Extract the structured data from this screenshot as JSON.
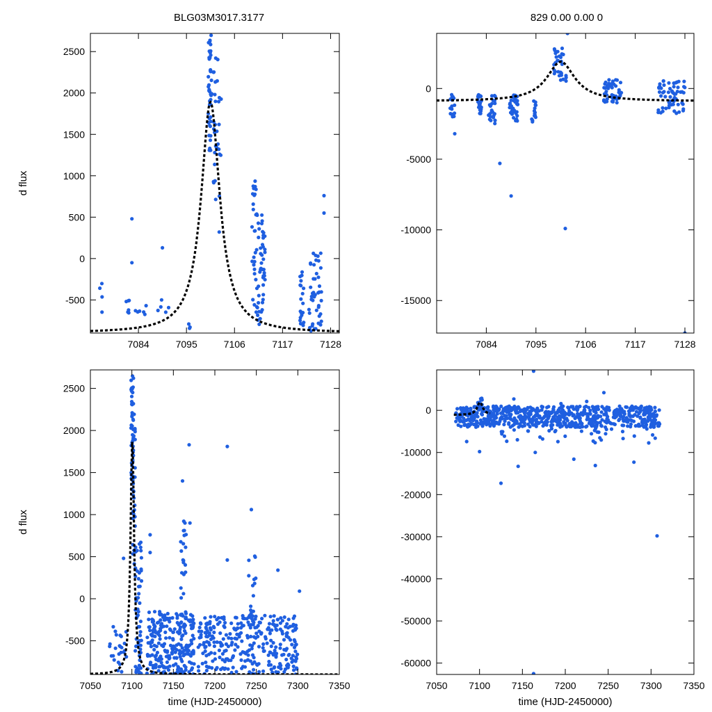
{
  "titles": {
    "left": "BLG03M3017.3177",
    "right": "829  0.00  0.00  0"
  },
  "colors": {
    "points": "#1f5fe0",
    "model": "#000000",
    "frame": "#000000"
  },
  "chart_data": [
    {
      "id": "top-left",
      "type": "scatter",
      "title": "BLG03M3017.3177",
      "xlabel": "",
      "ylabel": "d flux",
      "xlim": [
        7073,
        7130
      ],
      "ylim": [
        -900,
        2720
      ],
      "xticks": [
        7084,
        7095,
        7106,
        7117,
        7128
      ],
      "yticks": [
        -500,
        0,
        500,
        1000,
        1500,
        2000,
        2500
      ],
      "model": {
        "type": "peak",
        "base": -900,
        "amp": 2790,
        "t0": 7100.5,
        "tau": 2.6
      },
      "clusters": [
        {
          "x": [
            7075,
            7076
          ],
          "y": [
            -800,
            -300
          ],
          "n": 4
        },
        {
          "x": [
            7081,
            7082
          ],
          "y": [
            -700,
            -470
          ],
          "n": 6
        },
        {
          "x": [
            7083,
            7086
          ],
          "y": [
            -700,
            -550
          ],
          "n": 6
        },
        {
          "x": [
            7088,
            7091
          ],
          "y": [
            -700,
            -470
          ],
          "n": 5
        },
        {
          "x": [
            7095,
            7096
          ],
          "y": [
            -850,
            -780
          ],
          "n": 3
        },
        {
          "x": [
            7100,
            7100.8
          ],
          "y": [
            1300,
            2700
          ],
          "n": 45
        },
        {
          "x": [
            7101,
            7103
          ],
          "y": [
            700,
            2450
          ],
          "n": 30
        },
        {
          "x": [
            7110,
            7111
          ],
          "y": [
            -700,
            950
          ],
          "n": 25
        },
        {
          "x": [
            7111,
            7113
          ],
          "y": [
            -800,
            550
          ],
          "n": 50
        },
        {
          "x": [
            7121,
            7122
          ],
          "y": [
            -850,
            -100
          ],
          "n": 20
        },
        {
          "x": [
            7123,
            7126
          ],
          "y": [
            -880,
            100
          ],
          "n": 45
        }
      ],
      "extra_points": [
        [
          7082.5,
          480
        ],
        [
          7082.5,
          -50
        ],
        [
          7089.5,
          130
        ],
        [
          7126.5,
          760
        ],
        [
          7126.5,
          550
        ],
        [
          7102.5,
          320
        ]
      ]
    },
    {
      "id": "top-right",
      "type": "scatter",
      "title": "829  0.00  0.00  0",
      "xlabel": "",
      "ylabel": "",
      "xlim": [
        7073,
        7130
      ],
      "ylim": [
        -17300,
        3900
      ],
      "xticks": [
        7084,
        7095,
        7106,
        7117,
        7128
      ],
      "yticks": [
        -15000,
        -10000,
        -5000,
        0
      ],
      "model": {
        "type": "peak",
        "base": -900,
        "amp": 2790,
        "t0": 7100.5,
        "tau": 3.8
      },
      "clusters": [
        {
          "x": [
            7076,
            7077
          ],
          "y": [
            -2000,
            -400
          ],
          "n": 18
        },
        {
          "x": [
            7082,
            7083
          ],
          "y": [
            -1800,
            -300
          ],
          "n": 20
        },
        {
          "x": [
            7084.5,
            7086
          ],
          "y": [
            -2500,
            -500
          ],
          "n": 22
        },
        {
          "x": [
            7089,
            7091
          ],
          "y": [
            -2400,
            -400
          ],
          "n": 35
        },
        {
          "x": [
            7094,
            7095
          ],
          "y": [
            -2400,
            -700
          ],
          "n": 14
        },
        {
          "x": [
            7099,
            7102
          ],
          "y": [
            500,
            3000
          ],
          "n": 30
        },
        {
          "x": [
            7110,
            7114
          ],
          "y": [
            -1000,
            800
          ],
          "n": 45
        },
        {
          "x": [
            7122,
            7128
          ],
          "y": [
            -1800,
            600
          ],
          "n": 60
        }
      ],
      "extra_points": [
        [
          7102,
          3900
        ],
        [
          7087,
          -5300
        ],
        [
          7089.5,
          -7600
        ],
        [
          7101.5,
          -9900
        ],
        [
          7128,
          -17300
        ],
        [
          7077,
          -3200
        ]
      ]
    },
    {
      "id": "bottom-left",
      "type": "scatter",
      "title": "",
      "xlabel": "time (HJD-2450000)",
      "ylabel": "d flux",
      "xlim": [
        7050,
        7350
      ],
      "ylim": [
        -900,
        2720
      ],
      "xticks": [
        7050,
        7100,
        7150,
        7200,
        7250,
        7300,
        7350
      ],
      "yticks": [
        -500,
        0,
        500,
        1000,
        1500,
        2000,
        2500
      ],
      "model": {
        "type": "peak",
        "base": -900,
        "amp": 2790,
        "t0": 7100.5,
        "tau": 2.6
      },
      "clusters": [
        {
          "x": [
            7073,
            7095
          ],
          "y": [
            -900,
            -300
          ],
          "n": 25
        },
        {
          "x": [
            7099,
            7102
          ],
          "y": [
            1300,
            2700
          ],
          "n": 45
        },
        {
          "x": [
            7101,
            7104
          ],
          "y": [
            400,
            2400
          ],
          "n": 30
        },
        {
          "x": [
            7104,
            7112
          ],
          "y": [
            -900,
            700
          ],
          "n": 60
        },
        {
          "x": [
            7118,
            7175
          ],
          "y": [
            -900,
            -150
          ],
          "n": 260
        },
        {
          "x": [
            7158,
            7166
          ],
          "y": [
            -300,
            1000
          ],
          "n": 20
        },
        {
          "x": [
            7180,
            7300
          ],
          "y": [
            -900,
            -200
          ],
          "n": 320
        },
        {
          "x": [
            7240,
            7250
          ],
          "y": [
            -400,
            600
          ],
          "n": 18
        }
      ],
      "extra_points": [
        [
          7090,
          480
        ],
        [
          7122,
          760
        ],
        [
          7122,
          550
        ],
        [
          7161,
          1400
        ],
        [
          7169,
          1830
        ],
        [
          7215,
          1810
        ],
        [
          7244,
          1060
        ],
        [
          7276,
          340
        ],
        [
          7302,
          90
        ],
        [
          7215,
          460
        ],
        [
          7170,
          900
        ],
        [
          7164,
          900
        ]
      ]
    },
    {
      "id": "bottom-right",
      "type": "scatter",
      "title": "",
      "xlabel": "time (HJD-2450000)",
      "ylabel": "",
      "xlim": [
        7050,
        7350
      ],
      "ylim": [
        -62700,
        9600
      ],
      "xticks": [
        7050,
        7100,
        7150,
        7200,
        7250,
        7300,
        7350
      ],
      "yticks": [
        -60000,
        -50000,
        -40000,
        -30000,
        -20000,
        -10000,
        0
      ],
      "model": {
        "type": "peak",
        "base": -1100,
        "amp": 3000,
        "t0": 7100.5,
        "tau": 4.0
      },
      "model_xlim": [
        7070,
        7112
      ],
      "clusters": [
        {
          "x": [
            7072,
            7310
          ],
          "y": [
            -4000,
            1000
          ],
          "n": 700
        },
        {
          "x": [
            7098,
            7103
          ],
          "y": [
            500,
            3300
          ],
          "n": 12
        },
        {
          "x": [
            7125,
            7310
          ],
          "y": [
            -8000,
            -3500
          ],
          "n": 40
        }
      ],
      "extra_points": [
        [
          7163,
          9300
        ],
        [
          7163,
          -62500
        ],
        [
          7307,
          -29800
        ],
        [
          7125,
          -17300
        ],
        [
          7145,
          -13300
        ],
        [
          7085,
          -7400
        ],
        [
          7100,
          -9800
        ],
        [
          7165,
          -10000
        ],
        [
          7210,
          -11600
        ],
        [
          7235,
          -13100
        ],
        [
          7280,
          -12300
        ],
        [
          7245,
          4200
        ],
        [
          7140,
          2700
        ],
        [
          7195,
          1600
        ],
        [
          7225,
          2100
        ],
        [
          7295,
          700
        ]
      ]
    }
  ]
}
